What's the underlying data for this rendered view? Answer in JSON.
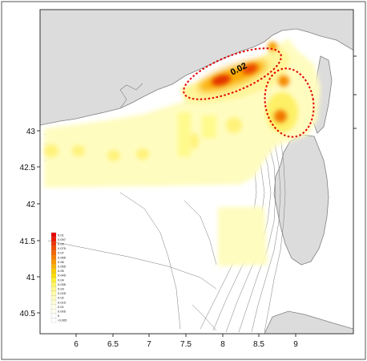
{
  "map": {
    "axis": {
      "x_ticks": [
        "6",
        "6.5",
        "7",
        "7.5",
        "8",
        "8.5",
        "9"
      ],
      "y_ticks": [
        "40.5",
        "41",
        "41.5",
        "42",
        "42.5",
        "43"
      ]
    },
    "annotation": "0.02",
    "legend": {
      "values": [
        "0.01",
        "0.097",
        "0.09",
        "0.075",
        "0.07",
        "0.065",
        "0.06",
        "0.055",
        "0.05",
        "0.045",
        "0.04",
        "0.035",
        "0.03",
        "0.025",
        "0.02",
        "0.015",
        "0.01",
        "0.005",
        "0",
        "-0.005"
      ],
      "colors": [
        "#e60000",
        "#ea1a00",
        "#ee3300",
        "#f24d00",
        "#f56600",
        "#f78000",
        "#f99900",
        "#fbb300",
        "#fccc00",
        "#fde000",
        "#fef033",
        "#fef566",
        "#fffa8c",
        "#fffba8",
        "#fffcc0",
        "#fffdd6",
        "#fffee6",
        "#fffff2",
        "#ffffff",
        "#ffffff"
      ]
    },
    "colors": {
      "land": "#dcdcdc",
      "sea": "#ffffff",
      "coast": "#808080",
      "highlight": "#e00000"
    }
  }
}
